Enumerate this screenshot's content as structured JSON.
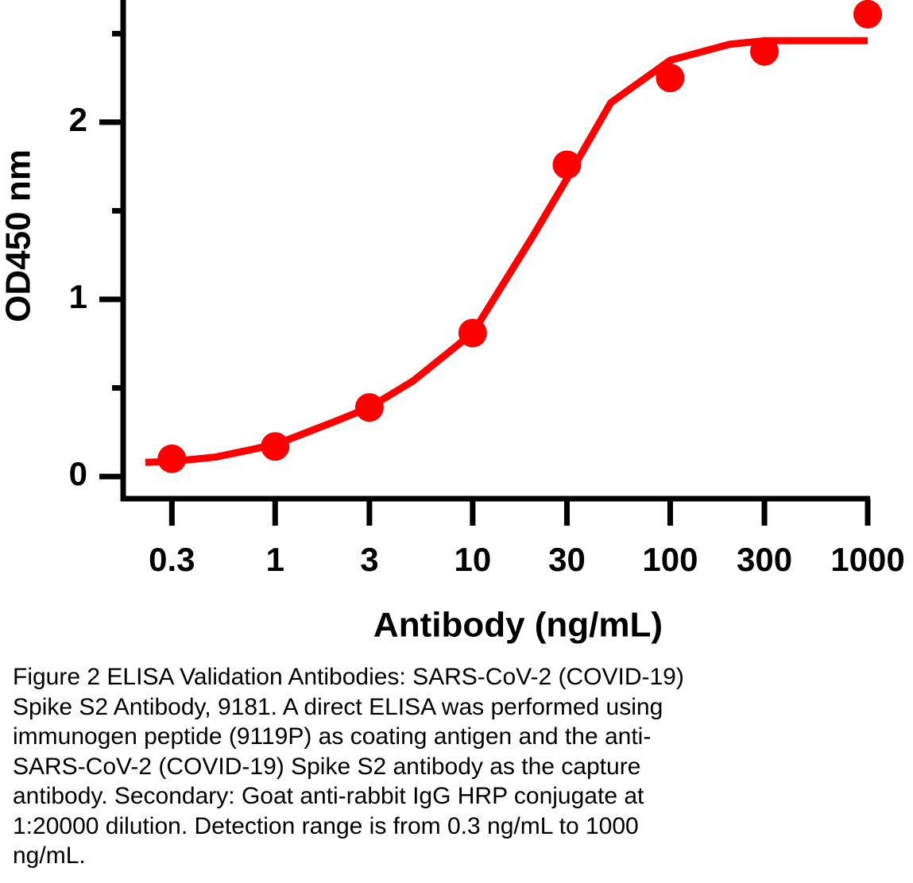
{
  "chart_data": {
    "type": "scatter",
    "ylabel": "OD450 nm",
    "xlabel": "Antibody (ng/mL)",
    "xscale": "log",
    "xlim": [
      0.17,
      1000
    ],
    "xticks": [
      0.3,
      1,
      3,
      10,
      30,
      100,
      300,
      1000
    ],
    "ylim": [
      -0.125,
      2.69
    ],
    "yticks": [
      0,
      1,
      2
    ],
    "yminor_ticks": [
      0.5,
      1.5,
      2.5
    ],
    "grid": false,
    "series": [
      {
        "mode": "line",
        "color": "#ff0000",
        "x": [
          0.22,
          0.3,
          0.5,
          1,
          2,
          3,
          5,
          10,
          20,
          30,
          50,
          100,
          200,
          300,
          1000
        ],
        "values": [
          0.08,
          0.085,
          0.11,
          0.18,
          0.31,
          0.39,
          0.54,
          0.81,
          1.35,
          1.68,
          2.11,
          2.35,
          2.44,
          2.46,
          2.46
        ]
      },
      {
        "mode": "markers",
        "color": "#ff0000",
        "x": [
          0.3,
          1,
          3,
          10,
          30,
          100,
          300,
          1000
        ],
        "values": [
          0.1,
          0.17,
          0.39,
          0.81,
          1.76,
          2.25,
          2.4,
          2.61
        ]
      }
    ],
    "caption": [
      "Figure 2 ELISA Validation Antibodies: SARS-CoV-2 (COVID-19)",
      "Spike S2 Antibody, 9181. A direct ELISA was performed using",
      "immunogen peptide (9119P) as coating antigen and the anti-",
      "SARS-CoV-2 (COVID-19) Spike S2 antibody as the capture",
      "antibody. Secondary: Goat anti-rabbit IgG HRP conjugate at",
      "1:20000 dilution. Detection range is from 0.3 ng/mL to 1000",
      "ng/mL."
    ]
  }
}
